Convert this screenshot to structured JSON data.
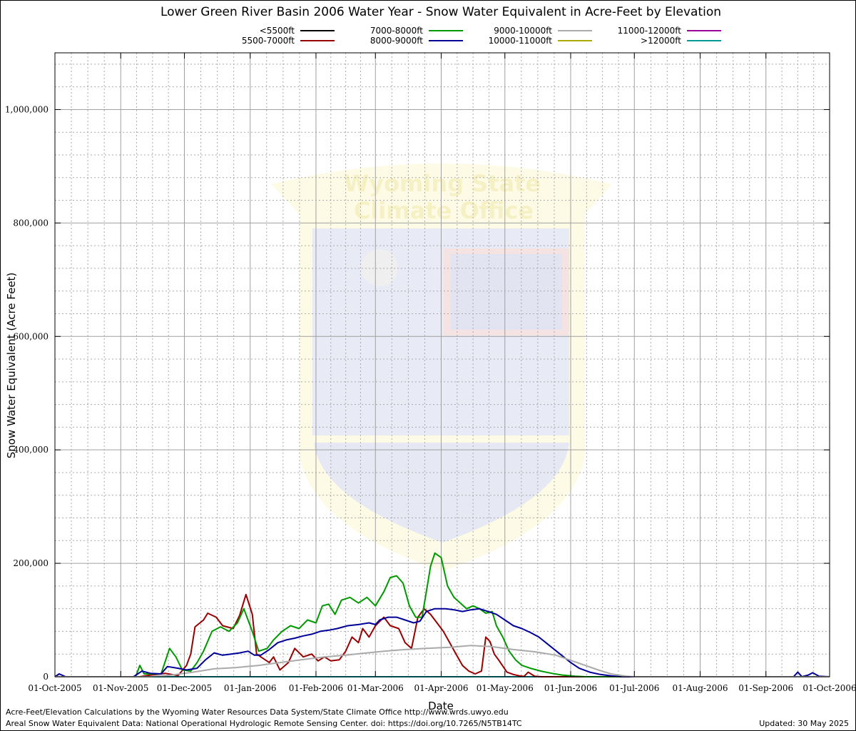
{
  "chart_data": {
    "type": "line",
    "title": "Lower Green River Basin 2006 Water Year - Snow Water Equivalent in Acre-Feet by Elevation",
    "xlabel": "Date",
    "ylabel": "Snow Water Equivalent (Acre Feet)",
    "ylim": [
      0,
      1100000
    ],
    "y_ticks": [
      0,
      200000,
      400000,
      600000,
      800000,
      1000000
    ],
    "y_tick_labels": [
      "0",
      "200,000",
      "400,000",
      "600,000",
      "800,000",
      "1,000,000"
    ],
    "y_minor_step": 40000,
    "x_ticks": [
      "2005-10-01",
      "2005-11-01",
      "2005-12-01",
      "2006-01-01",
      "2006-02-01",
      "2006-03-01",
      "2006-04-01",
      "2006-05-01",
      "2006-06-01",
      "2006-07-01",
      "2006-08-01",
      "2006-09-01",
      "2006-10-01"
    ],
    "x_tick_labels": [
      "01-Oct-2005",
      "01-Nov-2005",
      "01-Dec-2005",
      "01-Jan-2006",
      "01-Feb-2006",
      "01-Mar-2006",
      "01-Apr-2006",
      "01-May-2006",
      "01-Jun-2006",
      "01-Jul-2006",
      "01-Aug-2006",
      "01-Sep-2006",
      "01-Oct-2006"
    ],
    "grid": true,
    "legend_position": "top",
    "series": [
      {
        "name": "<5500ft",
        "color": "#000000",
        "points": [
          [
            "2005-10-01",
            0
          ],
          [
            "2006-10-01",
            0
          ]
        ]
      },
      {
        "name": "5500-7000ft",
        "color": "#990000",
        "points": [
          [
            "2005-10-01",
            0
          ],
          [
            "2005-11-10",
            0
          ],
          [
            "2005-11-15",
            3000
          ],
          [
            "2005-11-22",
            6000
          ],
          [
            "2005-11-28",
            2000
          ],
          [
            "2005-12-02",
            20000
          ],
          [
            "2005-12-04",
            40000
          ],
          [
            "2005-12-06",
            88000
          ],
          [
            "2005-12-10",
            100000
          ],
          [
            "2005-12-12",
            112000
          ],
          [
            "2005-12-16",
            105000
          ],
          [
            "2005-12-19",
            90000
          ],
          [
            "2005-12-24",
            85000
          ],
          [
            "2005-12-27",
            108000
          ],
          [
            "2005-12-30",
            145000
          ],
          [
            "2006-01-02",
            110000
          ],
          [
            "2006-01-04",
            40000
          ],
          [
            "2006-01-08",
            30000
          ],
          [
            "2006-01-10",
            25000
          ],
          [
            "2006-01-12",
            35000
          ],
          [
            "2006-01-15",
            12000
          ],
          [
            "2006-01-19",
            25000
          ],
          [
            "2006-01-22",
            50000
          ],
          [
            "2006-01-26",
            35000
          ],
          [
            "2006-01-30",
            40000
          ],
          [
            "2006-02-02",
            28000
          ],
          [
            "2006-02-05",
            35000
          ],
          [
            "2006-02-08",
            28000
          ],
          [
            "2006-02-12",
            30000
          ],
          [
            "2006-02-15",
            45000
          ],
          [
            "2006-02-18",
            70000
          ],
          [
            "2006-02-21",
            60000
          ],
          [
            "2006-02-23",
            85000
          ],
          [
            "2006-02-26",
            70000
          ],
          [
            "2006-03-01",
            90000
          ],
          [
            "2006-03-05",
            105000
          ],
          [
            "2006-03-08",
            90000
          ],
          [
            "2006-03-12",
            85000
          ],
          [
            "2006-03-15",
            60000
          ],
          [
            "2006-03-18",
            50000
          ],
          [
            "2006-03-21",
            105000
          ],
          [
            "2006-03-24",
            120000
          ],
          [
            "2006-03-27",
            110000
          ],
          [
            "2006-03-30",
            95000
          ],
          [
            "2006-04-02",
            80000
          ],
          [
            "2006-04-05",
            60000
          ],
          [
            "2006-04-08",
            40000
          ],
          [
            "2006-04-11",
            20000
          ],
          [
            "2006-04-14",
            10000
          ],
          [
            "2006-04-17",
            5000
          ],
          [
            "2006-04-20",
            10000
          ],
          [
            "2006-04-22",
            70000
          ],
          [
            "2006-04-24",
            62000
          ],
          [
            "2006-04-26",
            40000
          ],
          [
            "2006-04-28",
            30000
          ],
          [
            "2006-05-02",
            8000
          ],
          [
            "2006-05-05",
            4000
          ],
          [
            "2006-05-08",
            1500
          ],
          [
            "2006-05-10",
            500
          ],
          [
            "2006-05-12",
            8000
          ],
          [
            "2006-05-15",
            1000
          ],
          [
            "2006-05-18",
            0
          ],
          [
            "2006-10-01",
            0
          ]
        ]
      },
      {
        "name": "7000-8000ft",
        "color": "#009900",
        "points": [
          [
            "2005-10-01",
            0
          ],
          [
            "2005-11-08",
            0
          ],
          [
            "2005-11-10",
            20000
          ],
          [
            "2005-11-12",
            5000
          ],
          [
            "2005-11-20",
            5000
          ],
          [
            "2005-11-24",
            50000
          ],
          [
            "2005-11-27",
            35000
          ],
          [
            "2005-11-30",
            12000
          ],
          [
            "2005-12-04",
            10000
          ],
          [
            "2005-12-07",
            25000
          ],
          [
            "2005-12-10",
            45000
          ],
          [
            "2005-12-14",
            80000
          ],
          [
            "2005-12-18",
            88000
          ],
          [
            "2005-12-22",
            80000
          ],
          [
            "2005-12-26",
            95000
          ],
          [
            "2005-12-29",
            120000
          ],
          [
            "2006-01-02",
            80000
          ],
          [
            "2006-01-05",
            45000
          ],
          [
            "2006-01-09",
            50000
          ],
          [
            "2006-01-12",
            65000
          ],
          [
            "2006-01-16",
            80000
          ],
          [
            "2006-01-20",
            90000
          ],
          [
            "2006-01-24",
            85000
          ],
          [
            "2006-01-28",
            100000
          ],
          [
            "2006-02-01",
            95000
          ],
          [
            "2006-02-04",
            125000
          ],
          [
            "2006-02-07",
            128000
          ],
          [
            "2006-02-10",
            110000
          ],
          [
            "2006-02-13",
            135000
          ],
          [
            "2006-02-17",
            140000
          ],
          [
            "2006-02-21",
            130000
          ],
          [
            "2006-02-25",
            140000
          ],
          [
            "2006-03-01",
            125000
          ],
          [
            "2006-03-05",
            150000
          ],
          [
            "2006-03-08",
            175000
          ],
          [
            "2006-03-11",
            178000
          ],
          [
            "2006-03-14",
            165000
          ],
          [
            "2006-03-17",
            125000
          ],
          [
            "2006-03-20",
            105000
          ],
          [
            "2006-03-23",
            105000
          ],
          [
            "2006-03-25",
            150000
          ],
          [
            "2006-03-27",
            195000
          ],
          [
            "2006-03-29",
            218000
          ],
          [
            "2006-04-01",
            210000
          ],
          [
            "2006-04-04",
            160000
          ],
          [
            "2006-04-07",
            140000
          ],
          [
            "2006-04-10",
            130000
          ],
          [
            "2006-04-13",
            120000
          ],
          [
            "2006-04-16",
            125000
          ],
          [
            "2006-04-19",
            120000
          ],
          [
            "2006-04-22",
            112000
          ],
          [
            "2006-04-25",
            115000
          ],
          [
            "2006-04-27",
            90000
          ],
          [
            "2006-04-30",
            70000
          ],
          [
            "2006-05-03",
            45000
          ],
          [
            "2006-05-06",
            30000
          ],
          [
            "2006-05-09",
            20000
          ],
          [
            "2006-05-13",
            15000
          ],
          [
            "2006-05-18",
            10000
          ],
          [
            "2006-05-23",
            6000
          ],
          [
            "2006-05-28",
            3000
          ],
          [
            "2006-06-03",
            1000
          ],
          [
            "2006-06-08",
            0
          ],
          [
            "2006-10-01",
            0
          ]
        ]
      },
      {
        "name": "8000-9000ft",
        "color": "#000099",
        "points": [
          [
            "2005-10-01",
            0
          ],
          [
            "2005-10-03",
            5000
          ],
          [
            "2005-10-06",
            0
          ],
          [
            "2005-11-07",
            0
          ],
          [
            "2005-11-11",
            10000
          ],
          [
            "2005-11-15",
            6000
          ],
          [
            "2005-11-20",
            5000
          ],
          [
            "2005-11-23",
            18000
          ],
          [
            "2005-11-28",
            15000
          ],
          [
            "2005-12-02",
            12000
          ],
          [
            "2005-12-07",
            15000
          ],
          [
            "2005-12-11",
            30000
          ],
          [
            "2005-12-15",
            42000
          ],
          [
            "2005-12-19",
            38000
          ],
          [
            "2005-12-23",
            40000
          ],
          [
            "2005-12-27",
            42000
          ],
          [
            "2005-12-31",
            45000
          ],
          [
            "2006-01-03",
            38000
          ],
          [
            "2006-01-06",
            38000
          ],
          [
            "2006-01-10",
            48000
          ],
          [
            "2006-01-14",
            60000
          ],
          [
            "2006-01-18",
            65000
          ],
          [
            "2006-01-22",
            68000
          ],
          [
            "2006-01-26",
            72000
          ],
          [
            "2006-01-30",
            75000
          ],
          [
            "2006-02-03",
            80000
          ],
          [
            "2006-02-07",
            82000
          ],
          [
            "2006-02-11",
            85000
          ],
          [
            "2006-02-16",
            90000
          ],
          [
            "2006-02-21",
            92000
          ],
          [
            "2006-02-26",
            95000
          ],
          [
            "2006-03-01",
            92000
          ],
          [
            "2006-03-03",
            100000
          ],
          [
            "2006-03-07",
            105000
          ],
          [
            "2006-03-11",
            105000
          ],
          [
            "2006-03-15",
            100000
          ],
          [
            "2006-03-19",
            95000
          ],
          [
            "2006-03-22",
            98000
          ],
          [
            "2006-03-25",
            115000
          ],
          [
            "2006-03-29",
            120000
          ],
          [
            "2006-04-03",
            120000
          ],
          [
            "2006-04-07",
            118000
          ],
          [
            "2006-04-11",
            115000
          ],
          [
            "2006-04-15",
            118000
          ],
          [
            "2006-04-19",
            120000
          ],
          [
            "2006-04-23",
            115000
          ],
          [
            "2006-04-27",
            110000
          ],
          [
            "2006-05-01",
            100000
          ],
          [
            "2006-05-05",
            90000
          ],
          [
            "2006-05-09",
            85000
          ],
          [
            "2006-05-13",
            78000
          ],
          [
            "2006-05-17",
            70000
          ],
          [
            "2006-05-22",
            55000
          ],
          [
            "2006-05-27",
            40000
          ],
          [
            "2006-06-01",
            25000
          ],
          [
            "2006-06-05",
            15000
          ],
          [
            "2006-06-10",
            8000
          ],
          [
            "2006-06-15",
            4000
          ],
          [
            "2006-06-20",
            1500
          ],
          [
            "2006-06-25",
            0
          ],
          [
            "2006-09-14",
            0
          ],
          [
            "2006-09-16",
            8000
          ],
          [
            "2006-09-18",
            0
          ],
          [
            "2006-09-21",
            3000
          ],
          [
            "2006-09-23",
            7000
          ],
          [
            "2006-09-26",
            1000
          ],
          [
            "2006-10-01",
            0
          ]
        ]
      },
      {
        "name": "9000-10000ft",
        "color": "#aaaaaa",
        "points": [
          [
            "2005-10-01",
            0
          ],
          [
            "2005-11-15",
            0
          ],
          [
            "2005-11-25",
            3000
          ],
          [
            "2005-12-05",
            8000
          ],
          [
            "2005-12-15",
            14000
          ],
          [
            "2005-12-25",
            16000
          ],
          [
            "2006-01-05",
            20000
          ],
          [
            "2006-01-15",
            25000
          ],
          [
            "2006-01-25",
            30000
          ],
          [
            "2006-02-05",
            35000
          ],
          [
            "2006-02-15",
            38000
          ],
          [
            "2006-02-25",
            42000
          ],
          [
            "2006-03-05",
            45000
          ],
          [
            "2006-03-15",
            48000
          ],
          [
            "2006-03-25",
            50000
          ],
          [
            "2006-04-05",
            52000
          ],
          [
            "2006-04-15",
            55000
          ],
          [
            "2006-04-25",
            53000
          ],
          [
            "2006-05-05",
            48000
          ],
          [
            "2006-05-15",
            44000
          ],
          [
            "2006-05-25",
            38000
          ],
          [
            "2006-06-04",
            25000
          ],
          [
            "2006-06-14",
            12000
          ],
          [
            "2006-06-20",
            5000
          ],
          [
            "2006-06-27",
            1000
          ],
          [
            "2006-07-01",
            0
          ],
          [
            "2006-10-01",
            0
          ]
        ]
      },
      {
        "name": "10000-11000ft",
        "color": "#aaaa00",
        "points": [
          [
            "2005-10-01",
            0
          ],
          [
            "2006-10-01",
            0
          ]
        ]
      },
      {
        "name": "11000-12000ft",
        "color": "#990099",
        "points": [
          [
            "2005-10-01",
            0
          ],
          [
            "2006-10-01",
            0
          ]
        ]
      },
      {
        "name": ">12000ft",
        "color": "#009999",
        "points": [
          [
            "2005-10-01",
            0
          ],
          [
            "2006-10-01",
            0
          ]
        ]
      }
    ]
  },
  "footer": {
    "credit_1": "Acre-Feet/Elevation Calculations by the Wyoming Water Resources Data System/State Climate Office http://www.wrds.uwyo.edu",
    "credit_2": "Areal Snow Water Equivalent Data: National Operational Hydrologic Remote Sensing Center. doi: https://doi.org/10.7265/N5TB14TC",
    "updated": "Updated: 30 May 2025"
  },
  "watermark": {
    "line_1": "Wyoming State",
    "line_2": "Climate Office",
    "colors": {
      "shield": "#fdfbe4",
      "blue": "#d8dcef",
      "red": "#f4dede",
      "text": "#f6efbf"
    }
  }
}
